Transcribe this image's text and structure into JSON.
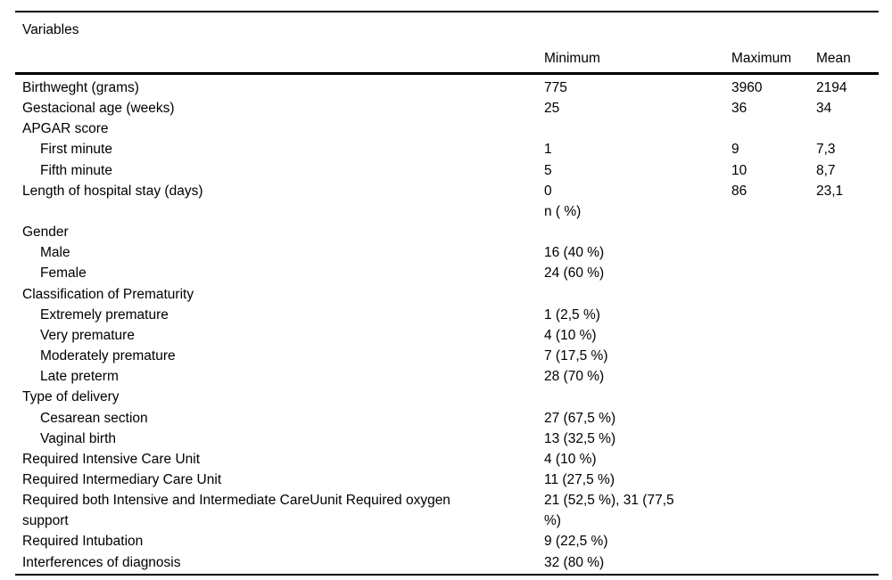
{
  "table": {
    "title": "Variables",
    "columns": [
      "Minimum",
      "Maximum",
      "Mean"
    ],
    "rows": [
      {
        "label": "Birthweght (grams)",
        "indent": 0,
        "min": "775",
        "max": "3960",
        "mean": "2194"
      },
      {
        "label": "Gestacional age (weeks)",
        "indent": 0,
        "min": "25",
        "max": "36",
        "mean": "34"
      },
      {
        "label": "APGAR score",
        "indent": 0,
        "min": "",
        "max": "",
        "mean": ""
      },
      {
        "label": "First minute",
        "indent": 1,
        "min": "1",
        "max": "9",
        "mean": "7,3"
      },
      {
        "label": "Fifth minute",
        "indent": 1,
        "min": "5",
        "max": "10",
        "mean": "8,7"
      },
      {
        "label": "Length of hospital stay (days)",
        "indent": 0,
        "min": "0",
        "max": "86",
        "mean": "23,1"
      },
      {
        "label": "",
        "indent": 0,
        "min": "n ( %)",
        "max": "",
        "mean": ""
      },
      {
        "label": "Gender",
        "indent": 0,
        "min": "",
        "max": "",
        "mean": ""
      },
      {
        "label": "Male",
        "indent": 1,
        "min": "16 (40 %)",
        "max": "",
        "mean": ""
      },
      {
        "label": "Female",
        "indent": 1,
        "min": "24 (60 %)",
        "max": "",
        "mean": ""
      },
      {
        "label": "Classification of Prematurity",
        "indent": 0,
        "min": "",
        "max": "",
        "mean": ""
      },
      {
        "label": "Extremely premature",
        "indent": 1,
        "min": "1 (2,5 %)",
        "max": "",
        "mean": ""
      },
      {
        "label": "Very premature",
        "indent": 1,
        "min": "4 (10 %)",
        "max": "",
        "mean": ""
      },
      {
        "label": "Moderately premature",
        "indent": 1,
        "min": "7 (17,5 %)",
        "max": "",
        "mean": ""
      },
      {
        "label": "Late preterm",
        "indent": 1,
        "min": "28 (70 %)",
        "max": "",
        "mean": ""
      },
      {
        "label": "Type of delivery",
        "indent": 0,
        "min": "",
        "max": "",
        "mean": ""
      },
      {
        "label": "Cesarean section",
        "indent": 1,
        "min": "27 (67,5 %)",
        "max": "",
        "mean": ""
      },
      {
        "label": "Vaginal birth",
        "indent": 1,
        "min": "13 (32,5 %)",
        "max": "",
        "mean": ""
      },
      {
        "label": "Required Intensive Care Unit",
        "indent": 0,
        "min": "4 (10 %)",
        "max": "",
        "mean": ""
      },
      {
        "label": "Required Intermediary Care Unit",
        "indent": 0,
        "min": "11 (27,5 %)",
        "max": "",
        "mean": ""
      },
      {
        "label": "Required both Intensive and Intermediate CareUunit Required oxygen support",
        "indent": 0,
        "min": "21 (52,5 %), 31 (77,5 %)",
        "max": "",
        "mean": ""
      },
      {
        "label": "Required Intubation",
        "indent": 0,
        "min": "9 (22,5 %)",
        "max": "",
        "mean": ""
      },
      {
        "label": "Interferences of diagnosis",
        "indent": 0,
        "min": "32 (80 %)",
        "max": "",
        "mean": ""
      }
    ]
  }
}
